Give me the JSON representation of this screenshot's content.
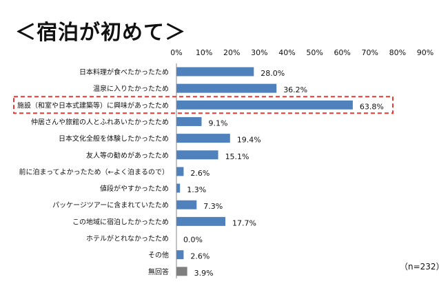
{
  "chart_data": {
    "type": "bar",
    "orientation": "horizontal",
    "title": "＜宿泊が初めて＞",
    "categories": [
      "日本料理が食べたかったため",
      "温泉に入りたかったため",
      "施設（和室や日本式建築等）に興味があったため",
      "仲居さんや旅館の人とふれあいたかったため",
      "日本文化全般を体験したかったため",
      "友人等の勧めがあったため",
      "前に泊まってよかったため（←よく泊まるので）",
      "値段がやすかったため",
      "パッケージツアーに含まれていたため",
      "この地域に宿泊したかったため",
      "ホテルがとれなかったため",
      "その他",
      "無回答"
    ],
    "values": [
      28.0,
      36.2,
      63.8,
      9.1,
      19.4,
      15.1,
      2.6,
      1.3,
      7.3,
      17.7,
      0.0,
      2.6,
      3.9
    ],
    "data_labels": [
      "28.0%",
      "36.2%",
      "63.8%",
      "9.1%",
      "19.4%",
      "15.1%",
      "2.6%",
      "1.3%",
      "7.3%",
      "17.7%",
      "0.0%",
      "2.6%",
      "3.9%"
    ],
    "x_ticks": [
      "0%",
      "10%",
      "20%",
      "30%",
      "40%",
      "50%",
      "60%",
      "70%",
      "80%",
      "90%"
    ],
    "xlim": [
      0,
      90
    ],
    "axis_position": "top",
    "grid": false,
    "highlighted_category": "施設（和室や日本式建築等）に興味があったため",
    "note": "（n=232）",
    "colors": {
      "bar": "#4f81bd",
      "no_answer_bar": "#7f7f7f",
      "highlight_box": "#e53935"
    }
  }
}
